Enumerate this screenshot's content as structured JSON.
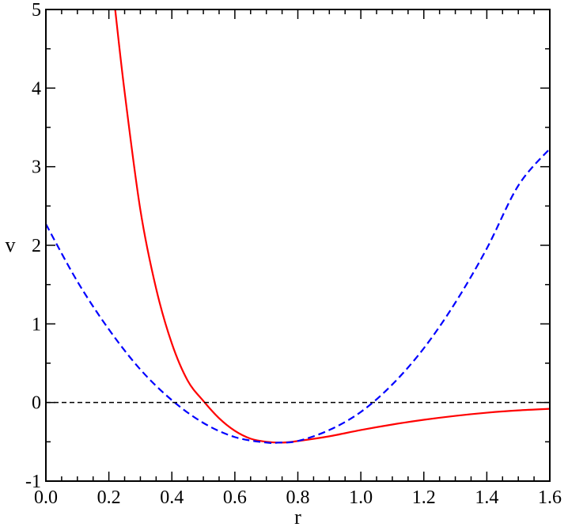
{
  "chart_data": {
    "type": "line",
    "xlabel": "r",
    "ylabel": "v",
    "xlim": [
      0.0,
      1.6
    ],
    "ylim": [
      -1,
      5
    ],
    "x_ticks": [
      "0.0",
      "0.2",
      "0.4",
      "0.6",
      "0.8",
      "1.0",
      "1.2",
      "1.4",
      "1.6"
    ],
    "y_ticks": [
      "-1",
      "0",
      "1",
      "2",
      "3",
      "4",
      "5"
    ],
    "grid": false,
    "legend": "none",
    "series": [
      {
        "style": "solid",
        "color": "#ff0000",
        "x": [
          0.22,
          0.25,
          0.3,
          0.35,
          0.4,
          0.45,
          0.5,
          0.55,
          0.6,
          0.65,
          0.7,
          0.75,
          0.8,
          0.9,
          1.0,
          1.1,
          1.2,
          1.3,
          1.4,
          1.5,
          1.6
        ],
        "y": [
          5.0,
          3.95,
          2.45,
          1.45,
          0.75,
          0.28,
          0.02,
          -0.2,
          -0.36,
          -0.46,
          -0.5,
          -0.51,
          -0.49,
          -0.43,
          -0.35,
          -0.28,
          -0.22,
          -0.17,
          -0.13,
          -0.1,
          -0.08
        ]
      },
      {
        "style": "dashed",
        "color": "#0000ff",
        "x": [
          0.0,
          0.1,
          0.2,
          0.3,
          0.4,
          0.5,
          0.6,
          0.7,
          0.74,
          0.8,
          0.9,
          1.0,
          1.1,
          1.2,
          1.3,
          1.4,
          1.5,
          1.6
        ],
        "y": [
          2.27,
          1.54,
          0.93,
          0.42,
          0.03,
          -0.26,
          -0.44,
          -0.51,
          -0.51,
          -0.49,
          -0.35,
          -0.12,
          0.23,
          0.69,
          1.27,
          1.96,
          2.76,
          3.23
        ]
      },
      {
        "style": "dashed",
        "color": "#000000",
        "x": [
          0.0,
          1.6
        ],
        "y": [
          0,
          0
        ]
      }
    ]
  }
}
